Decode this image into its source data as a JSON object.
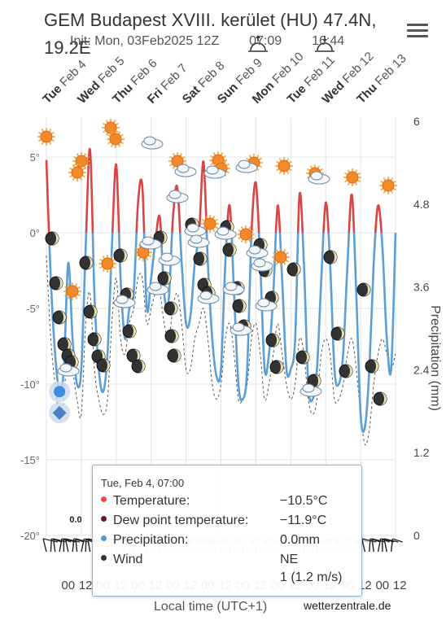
{
  "header": {
    "title_line1": "GEM Budapest XVIII. kerület (HU) 47.4N,",
    "title_line2": "19.2E",
    "init_text": "Init: Mon, 03Feb2025 12Z",
    "sunrise": "07:09",
    "sunset": "16:44"
  },
  "footer": {
    "x_axis_title": "Local time (UTC+1)",
    "credit": "wetterzentrale.de"
  },
  "tooltip": {
    "header": "Tue, Feb 4, 07:00",
    "rows": [
      {
        "label": "Temperature:",
        "value": "−10.5°C",
        "color": "#e05050"
      },
      {
        "label": "Dew point temperature:",
        "value": "−11.9°C",
        "color": "#6b1a1a"
      },
      {
        "label": "Precipitation:",
        "value": "0.0mm",
        "color": "#5b95c8"
      },
      {
        "label": "Wind",
        "value": "NE",
        "value2": "1 (1.2 m/s)",
        "color": "#333333"
      }
    ]
  },
  "chart_data": {
    "type": "line",
    "y_axis_left": {
      "ticks": [
        "5°",
        "0°",
        "-5°",
        "-10°",
        "-15°",
        "-20°"
      ],
      "values": [
        5,
        0,
        -5,
        -10,
        -15,
        -20
      ]
    },
    "y_axis_right": {
      "title": "Precipitation (mm)",
      "ticks": [
        "6",
        "4.8",
        "3.6",
        "2.4",
        "1.2",
        "0"
      ],
      "values": [
        6,
        4.8,
        3.6,
        2.4,
        1.2,
        0
      ]
    },
    "x_top_labels": [
      {
        "day": "Tue",
        "date": "Feb 4"
      },
      {
        "day": "Wed",
        "date": "Feb 5"
      },
      {
        "day": "Thu",
        "date": "Feb 6"
      },
      {
        "day": "Fri",
        "date": "Feb 7"
      },
      {
        "day": "Sat",
        "date": "Feb 8"
      },
      {
        "day": "Sun",
        "date": "Feb 9"
      },
      {
        "day": "Mon",
        "date": "Feb 10"
      },
      {
        "day": "Tue",
        "date": "Feb 11"
      },
      {
        "day": "Wed",
        "date": "Feb 12"
      },
      {
        "day": "Thu",
        "date": "Feb 13"
      }
    ],
    "x_bottom_labels": [
      "00",
      "12",
      "00",
      "12",
      "00",
      "12",
      "00",
      "12",
      "00",
      "12",
      "00",
      "12",
      "00",
      "12",
      "00",
      "12",
      "00",
      "12",
      "00",
      "12"
    ],
    "precip_label": "0.0",
    "series": [
      {
        "name": "Temperature",
        "color": "#5b9fd4",
        "x_hours": [
          0,
          3,
          6,
          9,
          12,
          15,
          18,
          21,
          24,
          27,
          30,
          33,
          36,
          39,
          42,
          45,
          48,
          51,
          54,
          57,
          60,
          63,
          66,
          69,
          72,
          75,
          78,
          81,
          84,
          87,
          90,
          93,
          96,
          99,
          102,
          105,
          108,
          111,
          114,
          117,
          120,
          123,
          126,
          129,
          132,
          135,
          138,
          141,
          144,
          147,
          150,
          153,
          156,
          159,
          162,
          165,
          168,
          171,
          174,
          177,
          180,
          183,
          186,
          189,
          192,
          195,
          198,
          201,
          204,
          207,
          210,
          213,
          216,
          219,
          222,
          225,
          228,
          231,
          234,
          237,
          240
        ],
        "values": [
          4.8,
          -3,
          -8,
          -10.5,
          -9,
          -2,
          -7,
          -10,
          -9,
          -1,
          5.5,
          -4,
          -9,
          -10.5,
          -8,
          -1,
          4.5,
          -3,
          -7,
          -5,
          -4,
          2,
          3,
          -5,
          -3,
          -0.5,
          1,
          -4,
          -4.5,
          1,
          3,
          -2,
          -6,
          -5.5,
          -2,
          0,
          4.7,
          -2,
          -7,
          -9.5,
          -9,
          -2,
          1.8,
          -4,
          -10,
          -11,
          -9,
          0,
          3.3,
          -2,
          -9,
          -8,
          -4,
          1.8,
          -3,
          -9,
          -9,
          -7,
          2.5,
          -2,
          -10,
          -11,
          -9,
          -3,
          2,
          -2,
          -9,
          -10,
          -8,
          -2,
          2.5,
          -4,
          -12,
          -12.8,
          -9,
          -2,
          1.8,
          -1,
          -7,
          -9,
          0
        ]
      },
      {
        "name": "Dew point temperature",
        "color": "#555555",
        "dashed": true,
        "values": [
          -1.5,
          -7,
          -10,
          -12,
          -11,
          -7,
          -9,
          -11,
          -12,
          -6,
          -4,
          -9,
          -11,
          -12,
          -11,
          -6,
          -3,
          -7,
          -8,
          -6,
          -5,
          -3,
          -3,
          -6,
          -5,
          -4,
          -4,
          -6,
          -7,
          -5,
          -4,
          -6,
          -9,
          -9,
          -7,
          -6,
          -5,
          -7,
          -10,
          -11,
          -10,
          -7,
          -6,
          -8,
          -11,
          -11,
          -10,
          -7,
          -6,
          -8,
          -11,
          -10,
          -8,
          -6,
          -8,
          -10,
          -11,
          -10,
          -7,
          -8,
          -11,
          -12,
          -11,
          -8,
          -7,
          -8,
          -11,
          -11,
          -10,
          -8,
          -7,
          -9,
          -12,
          -14,
          -13,
          -10,
          -8,
          -7,
          -8,
          -9,
          -8
        ]
      }
    ],
    "grid": true,
    "legend": "none"
  }
}
